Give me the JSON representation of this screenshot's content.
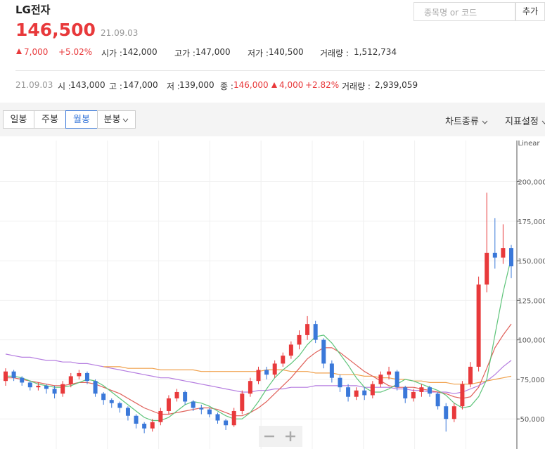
{
  "header": {
    "name": "LG전자",
    "price": "146,500",
    "date": "21.09.03",
    "change": "7,000",
    "change_pct": "+5.02%",
    "stats": [
      {
        "label": "시가 :",
        "value": "142,000"
      },
      {
        "label": "고가 :",
        "value": "147,000"
      },
      {
        "label": "저가 :",
        "value": "140,500"
      },
      {
        "label": "거래량 :",
        "value": "1,512,734"
      }
    ]
  },
  "search": {
    "placeholder": "종목명 or 코드",
    "button": "추가"
  },
  "daily": {
    "date": "21.09.03",
    "items": [
      {
        "label": "시 :",
        "value": "143,000"
      },
      {
        "label": "고 :",
        "value": "147,000"
      },
      {
        "label": "저 :",
        "value": "139,000"
      },
      {
        "label": "종 :",
        "value": "146,000"
      }
    ],
    "change": "4,000",
    "change_pct": "+2.82%",
    "volume": {
      "label": "거래량 :",
      "value": "2,939,059"
    }
  },
  "toolbar": {
    "tabs": [
      "일봉",
      "주봉",
      "월봉",
      "분봉"
    ],
    "selected": 2,
    "menus": [
      "차트종류",
      "지표설정"
    ]
  },
  "chart_data": {
    "type": "candlestick",
    "scale_label": "Linear",
    "ylim": [
      31000,
      226000
    ],
    "yticks": [
      {
        "value": 50000,
        "label": "50,000"
      },
      {
        "value": 75000,
        "label": "75,000"
      },
      {
        "value": 100000,
        "label": "100,000"
      },
      {
        "value": 125000,
        "label": "125,000"
      },
      {
        "value": 150000,
        "label": "150,000"
      },
      {
        "value": 175000,
        "label": "175,000"
      },
      {
        "value": 200000,
        "label": "200,000"
      }
    ],
    "grid": true,
    "up_color": "#e8393b",
    "down_color": "#3a78d9",
    "open": [
      74000,
      80000,
      76000,
      73000,
      70000,
      71000,
      69000,
      66000,
      72000,
      77000,
      79000,
      74000,
      66000,
      62000,
      60000,
      57000,
      52000,
      47000,
      44000,
      48000,
      55000,
      63000,
      67000,
      61000,
      57000,
      56000,
      53000,
      49000,
      46000,
      55000,
      66000,
      74000,
      81000,
      78000,
      85000,
      90000,
      97000,
      103000,
      110000,
      100000,
      85000,
      76000,
      70000,
      64000,
      68000,
      65000,
      72000,
      78000,
      80000,
      70000,
      63000,
      67000,
      70000,
      66000,
      58000,
      50000,
      58000,
      72000,
      83000,
      135000,
      155000,
      152000,
      158000
    ],
    "high": [
      82000,
      81000,
      77000,
      74000,
      73000,
      72000,
      71000,
      74000,
      79000,
      81000,
      80000,
      75000,
      67000,
      63000,
      61000,
      58000,
      53000,
      48000,
      50000,
      57000,
      65000,
      69000,
      68000,
      62000,
      59000,
      57000,
      54000,
      50000,
      57000,
      68000,
      76000,
      83000,
      83000,
      87000,
      92000,
      99000,
      106000,
      115000,
      112000,
      101000,
      87000,
      78000,
      72000,
      70000,
      70000,
      74000,
      80000,
      83000,
      81000,
      71000,
      69000,
      72000,
      71000,
      67000,
      60000,
      60000,
      74000,
      86000,
      140000,
      193000,
      177000,
      173000,
      160000
    ],
    "low": [
      71000,
      74000,
      71000,
      68000,
      68000,
      66000,
      63000,
      64000,
      70000,
      75000,
      72000,
      64000,
      59000,
      57000,
      54000,
      49000,
      44000,
      41000,
      42000,
      46000,
      53000,
      61000,
      59000,
      55000,
      53000,
      51000,
      47000,
      43000,
      45000,
      53000,
      64000,
      72000,
      75000,
      76000,
      83000,
      88000,
      94000,
      100000,
      98000,
      82000,
      73000,
      67000,
      61000,
      62000,
      62000,
      63000,
      70000,
      75000,
      68000,
      60000,
      61000,
      64000,
      64000,
      56000,
      42000,
      48000,
      56000,
      70000,
      80000,
      130000,
      145000,
      148000,
      139000
    ],
    "close": [
      80000,
      76000,
      73000,
      70000,
      71000,
      69000,
      66000,
      72000,
      77000,
      79000,
      74000,
      66000,
      62000,
      60000,
      57000,
      52000,
      47000,
      44000,
      48000,
      55000,
      63000,
      67000,
      61000,
      57000,
      56000,
      53000,
      49000,
      46000,
      55000,
      66000,
      74000,
      81000,
      78000,
      85000,
      90000,
      97000,
      103000,
      110000,
      100000,
      85000,
      76000,
      70000,
      64000,
      68000,
      65000,
      72000,
      78000,
      80000,
      70000,
      63000,
      67000,
      70000,
      66000,
      58000,
      50000,
      58000,
      72000,
      83000,
      135000,
      155000,
      152000,
      158000,
      146500
    ],
    "moving_averages": [
      {
        "color": "#b57de0",
        "values": [
          91000,
          90000,
          89000,
          89000,
          88000,
          87000,
          87000,
          86000,
          86000,
          85000,
          85000,
          84000,
          83000,
          82000,
          81000,
          80000,
          79000,
          78000,
          77000,
          76000,
          76000,
          75000,
          74000,
          73000,
          72000,
          71000,
          70000,
          69000,
          68000,
          67000,
          67000,
          68000,
          68000,
          69000,
          69000,
          70000,
          70000,
          70000,
          71000,
          71000,
          71000,
          71000,
          71000,
          71000,
          70000,
          70000,
          70000,
          70000,
          69000,
          69000,
          68000,
          68000,
          67000,
          67000,
          67000,
          66000,
          67000,
          69000,
          71000,
          74000,
          78000,
          83000,
          87000
        ]
      },
      {
        "color": "#f0a04b",
        "values": [
          null,
          null,
          null,
          null,
          null,
          null,
          null,
          null,
          null,
          null,
          null,
          null,
          83000,
          83000,
          83000,
          82000,
          82000,
          82000,
          82000,
          81000,
          81000,
          81000,
          81000,
          81000,
          80000,
          80000,
          80000,
          80000,
          80000,
          80000,
          80000,
          80000,
          81000,
          81000,
          81000,
          80000,
          80000,
          80000,
          79000,
          79000,
          79000,
          78000,
          78000,
          78000,
          77000,
          77000,
          76000,
          76000,
          75000,
          75000,
          74000,
          74000,
          73000,
          73000,
          73000,
          72000,
          72000,
          72000,
          73000,
          74000,
          75000,
          76000,
          77000
        ]
      },
      {
        "color": "#e0615a",
        "values": [
          76000,
          76000,
          75000,
          74000,
          73000,
          72000,
          71000,
          71000,
          72000,
          73000,
          73000,
          72000,
          70000,
          68000,
          66000,
          63000,
          60000,
          57000,
          55000,
          53000,
          53000,
          54000,
          55000,
          56000,
          57000,
          57000,
          56000,
          54000,
          52000,
          52000,
          54000,
          57000,
          61000,
          66000,
          71000,
          76000,
          82000,
          88000,
          92000,
          95000,
          95000,
          92000,
          88000,
          84000,
          80000,
          77000,
          74000,
          71000,
          70000,
          70000,
          70000,
          69000,
          68000,
          67000,
          66000,
          64000,
          63000,
          64000,
          70000,
          82000,
          95000,
          103000,
          110000
        ]
      },
      {
        "color": "#5ec47a",
        "values": [
          77000,
          77000,
          76000,
          74000,
          72000,
          71000,
          70000,
          70000,
          71000,
          73000,
          75000,
          74000,
          71000,
          67000,
          63000,
          59000,
          55000,
          51000,
          49000,
          49000,
          51000,
          55000,
          59000,
          61000,
          60000,
          58000,
          55000,
          52000,
          50000,
          50000,
          54000,
          61000,
          69000,
          76000,
          81000,
          85000,
          90000,
          97000,
          102000,
          103000,
          98000,
          91000,
          84000,
          76000,
          70000,
          67000,
          67000,
          69000,
          72000,
          75000,
          74000,
          72000,
          70000,
          68000,
          65000,
          60000,
          57000,
          58000,
          64000,
          75000,
          103000,
          130000,
          152000
        ]
      }
    ]
  }
}
